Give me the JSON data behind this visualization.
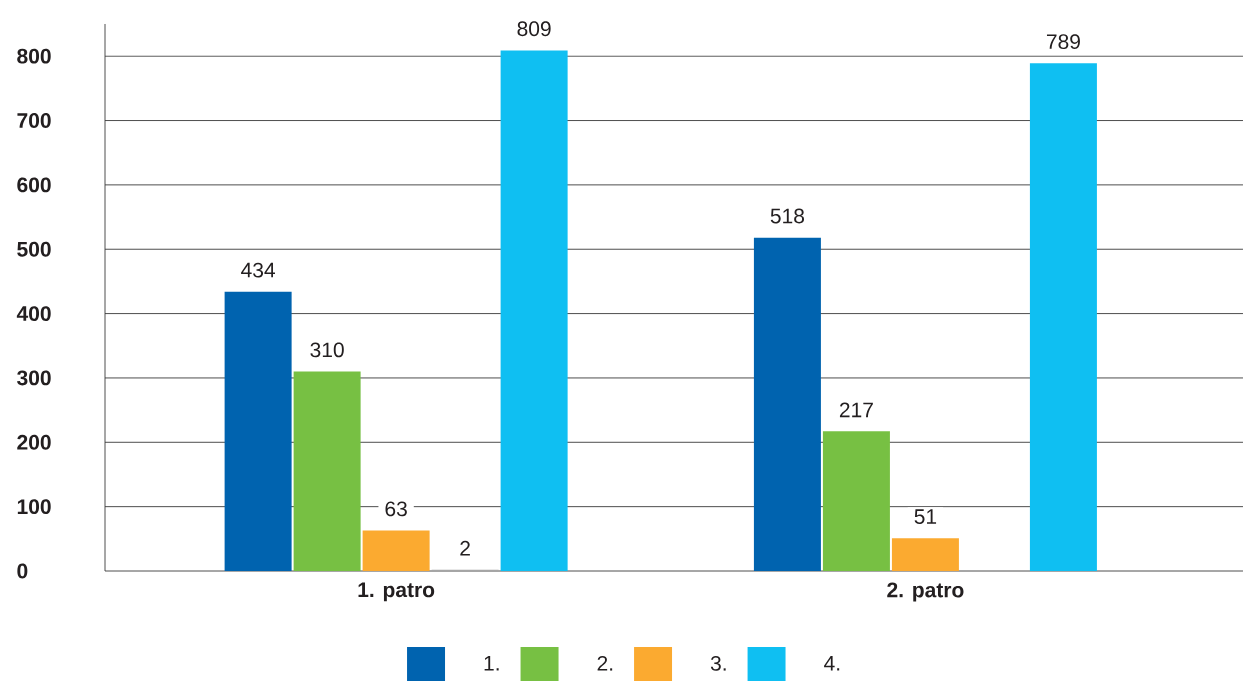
{
  "chart_data": {
    "type": "bar",
    "categories": [
      "1. patro",
      "2. patro"
    ],
    "series": [
      {
        "name": "1.",
        "color": "#0063af",
        "values": [
          434,
          518
        ]
      },
      {
        "name": "2.",
        "color": "#77c043",
        "values": [
          310,
          217
        ]
      },
      {
        "name": "3.",
        "color": "#fbaa30",
        "values": [
          63,
          51
        ]
      },
      {
        "color": "#a5a5a5",
        "values": [
          2,
          null
        ]
      },
      {
        "name": "4.",
        "color": "#0fbff2",
        "values": [
          809,
          789
        ]
      }
    ],
    "ylim": [
      0,
      850
    ],
    "yticks": [
      0,
      100,
      200,
      300,
      400,
      500,
      600,
      700,
      800
    ],
    "grid": "y",
    "legend": "bottom",
    "data_labels": true
  }
}
